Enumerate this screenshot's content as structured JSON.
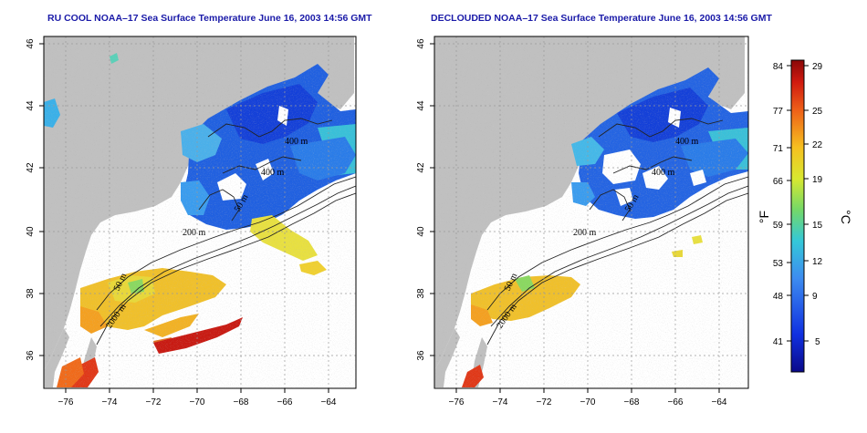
{
  "panels": [
    {
      "id": "left",
      "title": "RU COOL NOAA–17 Sea Surface Temperature June 16, 2003 14:56 GMT",
      "contour_labels": [
        "400 m",
        "400 m",
        "50 m",
        "200 m",
        "50 m",
        "2000 m"
      ]
    },
    {
      "id": "right",
      "title": "DECLOUDED NOAA–17 Sea Surface Temperature June 16, 2003 14:56 GMT",
      "contour_labels": [
        "400 m",
        "400 m",
        "50 m",
        "200 m",
        "50 m",
        "2000 m"
      ]
    }
  ],
  "axes": {
    "x_ticks": [
      "−76",
      "−74",
      "−72",
      "−70",
      "−68",
      "−66",
      "−64"
    ],
    "y_ticks": [
      "36",
      "38",
      "40",
      "42",
      "44",
      "46"
    ]
  },
  "colorbar": {
    "fahrenheit_ticks": [
      "84",
      "77",
      "71",
      "66",
      "59",
      "53",
      "48",
      "41"
    ],
    "celsius_ticks": [
      "29",
      "25",
      "22",
      "19",
      "15",
      "12",
      "9",
      "5"
    ],
    "left_unit": "°F",
    "right_unit": "°C"
  },
  "colors": {
    "land": "#c0c0c0",
    "title": "#1a1aa8"
  }
}
